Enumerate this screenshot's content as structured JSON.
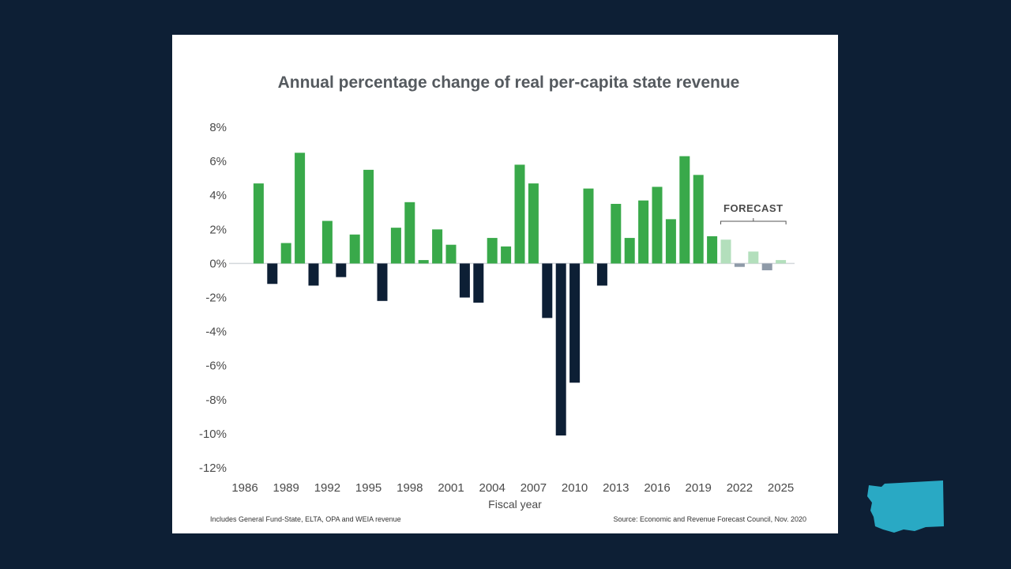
{
  "chart_data": {
    "type": "bar",
    "title": "Annual percentage change of real per-capita state revenue",
    "xlabel": "Fiscal year",
    "ylabel": "",
    "ylim": [
      -12,
      8
    ],
    "yticks": [
      "8%",
      "6%",
      "4%",
      "2%",
      "0%",
      "-2%",
      "-4%",
      "-6%",
      "-8%",
      "-10%",
      "-12%"
    ],
    "yticks_values": [
      8,
      6,
      4,
      2,
      0,
      -2,
      -4,
      -6,
      -8,
      -10,
      -12
    ],
    "xticks": [
      "1986",
      "1989",
      "1992",
      "1995",
      "1998",
      "2001",
      "2004",
      "2007",
      "2010",
      "2013",
      "2016",
      "2019",
      "2022",
      "2025"
    ],
    "years": [
      1986,
      1987,
      1988,
      1989,
      1990,
      1991,
      1992,
      1993,
      1994,
      1995,
      1996,
      1997,
      1998,
      1999,
      2000,
      2001,
      2002,
      2003,
      2004,
      2005,
      2006,
      2007,
      2008,
      2009,
      2010,
      2011,
      2012,
      2013,
      2014,
      2015,
      2016,
      2017,
      2018,
      2019,
      2020,
      2021,
      2022,
      2023,
      2024,
      2025
    ],
    "values": [
      0,
      4.7,
      -1.2,
      1.2,
      6.5,
      -1.3,
      2.5,
      -0.8,
      1.7,
      5.5,
      -2.2,
      2.1,
      3.6,
      0.2,
      2.0,
      1.1,
      -2.0,
      -2.3,
      1.5,
      1.0,
      5.8,
      4.7,
      -3.2,
      -10.1,
      -7.0,
      4.4,
      -1.3,
      3.5,
      1.5,
      3.7,
      4.5,
      2.6,
      6.3,
      5.2,
      1.6,
      1.4,
      -0.2,
      0.7,
      -0.4,
      0.2
    ],
    "forecast_start_year": 2021,
    "forecast_label": "FORECAST",
    "grid": false,
    "colors": {
      "positive": "#39a94a",
      "negative": "#0d1f35",
      "forecast_positive": "#b3dfbc",
      "forecast_negative": "#8e9aa8"
    }
  },
  "footnote_left": "Includes General Fund-State, ELTA, OPA and WEIA revenue",
  "footnote_right": "Source: Economic and Revenue Forecast Council, Nov. 2020",
  "colors": {
    "background": "#0d1f35",
    "panel": "#ffffff",
    "map": "#29a9c4"
  },
  "map_icon": "washington-state-map"
}
